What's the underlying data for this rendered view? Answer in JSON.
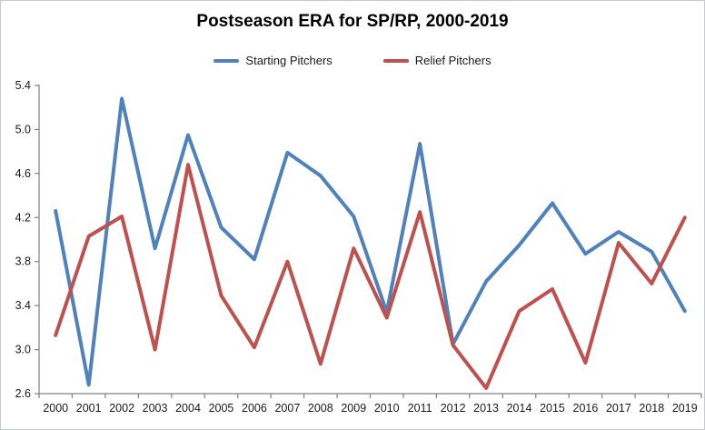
{
  "chart_data": {
    "type": "line",
    "title": "Postseason ERA for SP/RP, 2000-2019",
    "categories": [
      "2000",
      "2001",
      "2002",
      "2003",
      "2004",
      "2005",
      "2006",
      "2007",
      "2008",
      "2009",
      "2010",
      "2011",
      "2012",
      "2013",
      "2014",
      "2015",
      "2016",
      "2017",
      "2018",
      "2019"
    ],
    "series": [
      {
        "name": "Starting Pitchers",
        "color": "#4F81BD",
        "values": [
          4.26,
          2.68,
          5.28,
          3.92,
          4.95,
          4.11,
          3.82,
          4.79,
          4.58,
          4.21,
          3.34,
          4.87,
          3.05,
          3.62,
          3.95,
          4.33,
          3.87,
          4.07,
          3.89,
          3.35
        ]
      },
      {
        "name": "Relief Pitchers",
        "color": "#C0504D",
        "values": [
          3.13,
          4.03,
          4.21,
          3.0,
          4.68,
          3.49,
          3.02,
          3.8,
          2.87,
          3.92,
          3.29,
          4.25,
          3.04,
          2.65,
          3.35,
          3.55,
          2.88,
          3.97,
          3.6,
          4.2
        ]
      }
    ],
    "xlabel": "",
    "ylabel": "",
    "ylim": [
      2.6,
      5.4
    ],
    "y_ticks": [
      2.6,
      3.0,
      3.4,
      3.8,
      4.2,
      4.6,
      5.0,
      5.4
    ],
    "grid": false,
    "legend_position": "top",
    "axis_color": "#808080",
    "tick_label_color": "#1a1a1a",
    "background": "#ffffff",
    "border_color": "#c3c9ce"
  }
}
